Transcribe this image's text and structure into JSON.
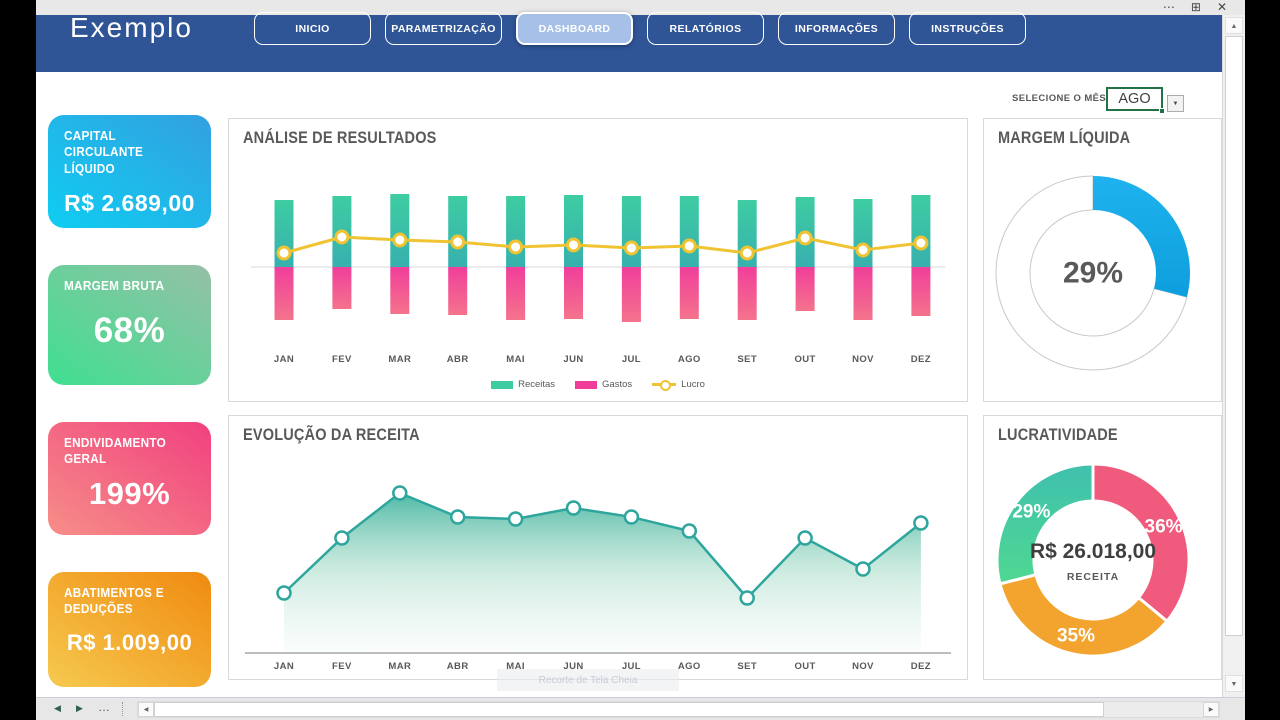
{
  "icons": {
    "ellipsis": "⋯",
    "restore": "⊞",
    "close": "✕",
    "up": "▲",
    "down": "▼",
    "left": "◀",
    "right": "▶",
    "sheet_prev": "◀",
    "sheet_next": "▶",
    "more": "…",
    "dropdown": "▼"
  },
  "nav": {
    "logo": "Exemplo",
    "items": [
      {
        "label": "INICIO",
        "active": false
      },
      {
        "label": "PARAMETRIZAÇÃO",
        "active": false
      },
      {
        "label": "DASHBOARD",
        "active": true
      },
      {
        "label": "RELATÓRIOS",
        "active": false
      },
      {
        "label": "INFORMAÇÕES",
        "active": false
      },
      {
        "label": "INSTRUÇÕES",
        "active": false
      }
    ],
    "bar_color": "#2f5597",
    "active_fill": "#a7c0e8"
  },
  "month_selector": {
    "label": "SELECIONE O MÊS",
    "value": "AGO"
  },
  "kpi_cards": [
    {
      "title": "CAPITAL CIRCULANTE LÍQUIDO",
      "value": "R$ 2.689,00",
      "gradient_from": "#33a0e0",
      "gradient_to": "#0fcdf2"
    },
    {
      "title": "MARGEM BRUTA",
      "value": "68%",
      "gradient_from": "#96c0a6",
      "gradient_to": "#3fdf90"
    },
    {
      "title": "ENDIVIDAMENTO GERAL",
      "value": "199%",
      "gradient_from": "#f1407f",
      "gradient_to": "#f68e88"
    },
    {
      "title": "ABATIMENTOS E DEDUÇÕES",
      "value": "R$ 1.009,00",
      "gradient_from": "#f08a10",
      "gradient_to": "#f6c94f"
    }
  ],
  "chart_data": [
    {
      "id": "analise",
      "type": "bar",
      "title": "ANÁLISE DE RESULTADOS",
      "categories": [
        "JAN",
        "FEV",
        "MAR",
        "ABR",
        "MAI",
        "JUN",
        "JUL",
        "AGO",
        "SET",
        "OUT",
        "NOV",
        "DEZ"
      ],
      "series": [
        {
          "name": "Receitas",
          "type": "bar",
          "color_top": "#3ecda2",
          "color_bottom": "#37b0ae",
          "values": [
            67,
            71,
            73,
            71,
            71,
            72,
            71,
            71,
            67,
            70,
            68,
            72
          ]
        },
        {
          "name": "Gastos",
          "type": "bar",
          "color_top": "#f13e9b",
          "color_bottom": "#f4738c",
          "values": [
            -53,
            -42,
            -47,
            -48,
            -53,
            -52,
            -55,
            -52,
            -53,
            -44,
            -53,
            -49
          ]
        },
        {
          "name": "Lucro",
          "type": "line",
          "color": "#f0c332",
          "marker_fill": "#ffffff",
          "values": [
            14,
            30,
            27,
            25,
            20,
            22,
            19,
            21,
            14,
            29,
            17,
            24
          ]
        }
      ],
      "ylim": [
        -60,
        80
      ],
      "units": "relative",
      "grid": false,
      "legend_position": "bottom"
    },
    {
      "id": "evolucao",
      "type": "area",
      "title": "EVOLUÇÃO DA RECEITA",
      "categories": [
        "JAN",
        "FEV",
        "MAR",
        "ABR",
        "MAI",
        "JUN",
        "JUL",
        "AGO",
        "SET",
        "OUT",
        "NOV",
        "DEZ"
      ],
      "series": [
        {
          "name": "Receita",
          "color": "#2ea69e",
          "fill_top": "#46b6a2",
          "fill_mid": "#a8dcc8",
          "fill_bottom": "#f3faf7",
          "values": [
            60,
            115,
            160,
            136,
            134,
            145,
            136,
            122,
            55,
            115,
            84,
            130
          ]
        }
      ],
      "ylim": [
        0,
        170
      ],
      "units": "relative",
      "grid": false,
      "legend_position": "none"
    },
    {
      "id": "margem_liquida",
      "type": "donut",
      "title": "MARGEM LÍQUIDA",
      "center_label": "29%",
      "ring_outline": "#c9c9c9",
      "slices": [
        {
          "label": "",
          "value": 29,
          "color": "#1eb2ee",
          "color2": "#0d9fdd"
        },
        {
          "label": "",
          "value": 71,
          "color": "#ffffff"
        }
      ]
    },
    {
      "id": "lucratividade",
      "type": "donut",
      "title": "LUCRATIVIDADE",
      "center_value": "R$ 26.018,00",
      "center_sublabel": "RECEITA",
      "slices": [
        {
          "label": "36%",
          "value": 36,
          "color": "#f05a7d"
        },
        {
          "label": "35%",
          "value": 35,
          "color": "#f3a42e"
        },
        {
          "label": "29%",
          "value": 29,
          "color": "#3fc0ae",
          "color2": "#4fd892"
        }
      ]
    }
  ],
  "watermark": "Recorte de Tela Cheia"
}
